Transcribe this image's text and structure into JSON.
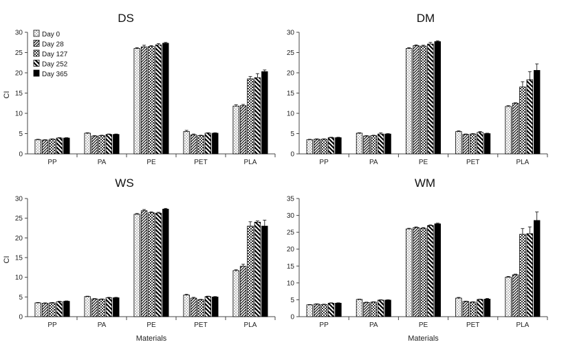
{
  "figure": {
    "legend_entries": [
      "Day 0",
      "Day 28",
      "Day 127",
      "Day 252",
      "Day 365"
    ]
  },
  "chart_data": [
    {
      "type": "bar",
      "title": "DS",
      "xlabel": "",
      "ylabel": "CI",
      "ylim": [
        0,
        30
      ],
      "yticks": [
        0,
        5,
        10,
        15,
        20,
        25,
        30
      ],
      "categories": [
        "PP",
        "PA",
        "PE",
        "PET",
        "PLA"
      ],
      "legend": "top-left",
      "series": [
        {
          "name": "Day 0",
          "values": [
            3.5,
            5.1,
            26.0,
            5.5,
            11.8
          ],
          "errors": [
            0.1,
            0.1,
            0.2,
            0.3,
            0.3
          ]
        },
        {
          "name": "Day 28",
          "values": [
            3.4,
            4.4,
            26.4,
            4.7,
            11.9
          ],
          "errors": [
            0.1,
            0.1,
            0.4,
            0.2,
            0.3
          ]
        },
        {
          "name": "Day 127",
          "values": [
            3.6,
            4.5,
            26.5,
            4.5,
            18.5
          ],
          "errors": [
            0.1,
            0.1,
            0.2,
            0.1,
            0.6
          ]
        },
        {
          "name": "Day 252",
          "values": [
            3.9,
            4.8,
            26.9,
            5.1,
            18.8
          ],
          "errors": [
            0.1,
            0.1,
            0.3,
            0.1,
            1.0
          ]
        },
        {
          "name": "Day 365",
          "values": [
            3.9,
            4.8,
            27.3,
            5.1,
            20.3
          ],
          "errors": [
            0.1,
            0.1,
            0.2,
            0.1,
            0.4
          ]
        }
      ]
    },
    {
      "type": "bar",
      "title": "DM",
      "xlabel": "",
      "ylabel": "",
      "ylim": [
        0,
        30
      ],
      "yticks": [
        0,
        5,
        10,
        15,
        20,
        25,
        30
      ],
      "categories": [
        "PP",
        "PA",
        "PE",
        "PET",
        "PLA"
      ],
      "series": [
        {
          "name": "Day 0",
          "values": [
            3.5,
            5.1,
            26.0,
            5.5,
            11.7
          ],
          "errors": [
            0.1,
            0.1,
            0.2,
            0.2,
            0.2
          ]
        },
        {
          "name": "Day 28",
          "values": [
            3.6,
            4.4,
            26.7,
            4.8,
            12.5
          ],
          "errors": [
            0.1,
            0.1,
            0.2,
            0.1,
            0.1
          ]
        },
        {
          "name": "Day 127",
          "values": [
            3.6,
            4.5,
            26.6,
            4.9,
            16.5
          ],
          "errors": [
            0.1,
            0.1,
            0.2,
            0.1,
            1.3
          ]
        },
        {
          "name": "Day 252",
          "values": [
            4.0,
            4.9,
            27.1,
            5.3,
            18.3
          ],
          "errors": [
            0.1,
            0.3,
            0.4,
            0.2,
            2.0
          ]
        },
        {
          "name": "Day 365",
          "values": [
            4.0,
            4.9,
            27.7,
            5.0,
            20.6
          ],
          "errors": [
            0.1,
            0.1,
            0.2,
            0.1,
            1.6
          ]
        }
      ]
    },
    {
      "type": "bar",
      "title": "WS",
      "xlabel": "Materials",
      "ylabel": "CI",
      "ylim": [
        0,
        30
      ],
      "yticks": [
        0,
        5,
        10,
        15,
        20,
        25,
        30
      ],
      "categories": [
        "PP",
        "PA",
        "PE",
        "PET",
        "PLA"
      ],
      "series": [
        {
          "name": "Day 0",
          "values": [
            3.5,
            5.1,
            26.0,
            5.5,
            11.7
          ],
          "errors": [
            0.1,
            0.1,
            0.2,
            0.2,
            0.2
          ]
        },
        {
          "name": "Day 28",
          "values": [
            3.4,
            4.5,
            26.9,
            4.7,
            12.8
          ],
          "errors": [
            0.1,
            0.1,
            0.3,
            0.2,
            0.5
          ]
        },
        {
          "name": "Day 127",
          "values": [
            3.5,
            4.4,
            26.4,
            4.3,
            23.0
          ],
          "errors": [
            0.1,
            0.1,
            0.2,
            0.1,
            1.1
          ]
        },
        {
          "name": "Day 252",
          "values": [
            3.8,
            4.8,
            26.3,
            5.1,
            24.0
          ],
          "errors": [
            0.1,
            0.1,
            0.2,
            0.1,
            0.3
          ]
        },
        {
          "name": "Day 365",
          "values": [
            3.9,
            4.8,
            27.3,
            5.0,
            23.0
          ],
          "errors": [
            0.1,
            0.1,
            0.2,
            0.1,
            1.5
          ]
        }
      ]
    },
    {
      "type": "bar",
      "title": "WM",
      "xlabel": "Materials",
      "ylabel": "",
      "ylim": [
        0,
        35
      ],
      "yticks": [
        0,
        5,
        10,
        15,
        20,
        25,
        30,
        35
      ],
      "categories": [
        "PP",
        "PA",
        "PE",
        "PET",
        "PLA"
      ],
      "series": [
        {
          "name": "Day 0",
          "values": [
            3.5,
            5.1,
            26.0,
            5.5,
            11.7
          ],
          "errors": [
            0.1,
            0.1,
            0.2,
            0.2,
            0.2
          ]
        },
        {
          "name": "Day 28",
          "values": [
            3.7,
            4.2,
            26.4,
            4.5,
            12.4
          ],
          "errors": [
            0.1,
            0.1,
            0.2,
            0.1,
            0.2
          ]
        },
        {
          "name": "Day 127",
          "values": [
            3.6,
            4.3,
            26.2,
            4.3,
            24.4
          ],
          "errors": [
            0.1,
            0.1,
            0.2,
            0.1,
            1.7
          ]
        },
        {
          "name": "Day 252",
          "values": [
            4.0,
            4.9,
            27.0,
            5.1,
            24.6
          ],
          "errors": [
            0.1,
            0.1,
            0.2,
            0.1,
            2.0
          ]
        },
        {
          "name": "Day 365",
          "values": [
            4.0,
            4.9,
            27.5,
            5.2,
            28.5
          ],
          "errors": [
            0.1,
            0.1,
            0.2,
            0.2,
            2.5
          ]
        }
      ]
    }
  ]
}
